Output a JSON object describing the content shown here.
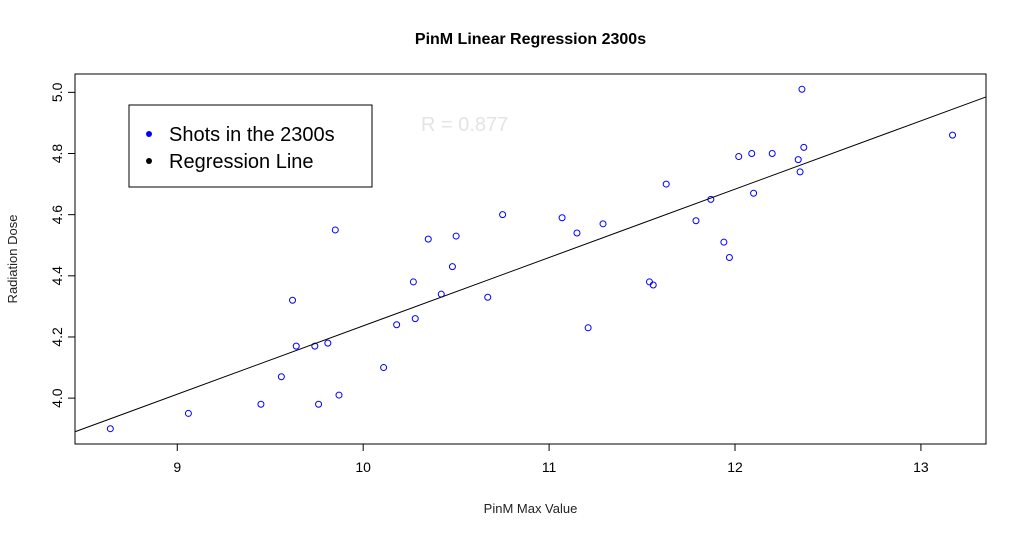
{
  "chart_data": {
    "type": "scatter",
    "title": "PinM Linear Regression 2300s",
    "xlabel": "PinM Max Value",
    "ylabel": "Radiation Dose",
    "xlim": [
      8.45,
      13.35
    ],
    "ylim": [
      3.85,
      5.06
    ],
    "xticks": [
      9,
      10,
      11,
      12,
      13
    ],
    "yticks": [
      4.0,
      4.2,
      4.4,
      4.6,
      4.8,
      5.0
    ],
    "ytick_labels": [
      "4.0",
      "4.2",
      "4.4",
      "4.6",
      "4.8",
      "5.0"
    ],
    "grid": false,
    "legend": {
      "position": "top-left",
      "entries": [
        {
          "label": "Shots in the 2300s",
          "color": "#0000ff"
        },
        {
          "label": "Regression Line",
          "color": "#000000"
        }
      ]
    },
    "annotation": "R = 0.877",
    "series": [
      {
        "name": "Shots in the 2300s",
        "color": "#0000ff",
        "points": [
          [
            8.64,
            3.9
          ],
          [
            9.06,
            3.95
          ],
          [
            9.45,
            3.98
          ],
          [
            9.56,
            4.07
          ],
          [
            9.62,
            4.32
          ],
          [
            9.64,
            4.17
          ],
          [
            9.74,
            4.17
          ],
          [
            9.76,
            3.98
          ],
          [
            9.81,
            4.18
          ],
          [
            9.85,
            4.55
          ],
          [
            9.87,
            4.01
          ],
          [
            10.11,
            4.1
          ],
          [
            10.18,
            4.24
          ],
          [
            10.27,
            4.38
          ],
          [
            10.28,
            4.26
          ],
          [
            10.35,
            4.52
          ],
          [
            10.42,
            4.34
          ],
          [
            10.48,
            4.43
          ],
          [
            10.5,
            4.53
          ],
          [
            10.67,
            4.33
          ],
          [
            10.75,
            4.6
          ],
          [
            11.07,
            4.59
          ],
          [
            11.15,
            4.54
          ],
          [
            11.21,
            4.23
          ],
          [
            11.29,
            4.57
          ],
          [
            11.54,
            4.38
          ],
          [
            11.56,
            4.37
          ],
          [
            11.63,
            4.7
          ],
          [
            11.79,
            4.58
          ],
          [
            11.87,
            4.65
          ],
          [
            11.94,
            4.51
          ],
          [
            11.97,
            4.46
          ],
          [
            12.02,
            4.79
          ],
          [
            12.09,
            4.8
          ],
          [
            12.1,
            4.67
          ],
          [
            12.2,
            4.8
          ],
          [
            12.34,
            4.78
          ],
          [
            12.35,
            4.74
          ],
          [
            12.36,
            5.01
          ],
          [
            12.37,
            4.82
          ],
          [
            13.17,
            4.86
          ]
        ]
      },
      {
        "name": "Regression Line",
        "color": "#000000",
        "line": [
          [
            8.45,
            3.89
          ],
          [
            13.35,
            4.985
          ]
        ]
      }
    ]
  }
}
